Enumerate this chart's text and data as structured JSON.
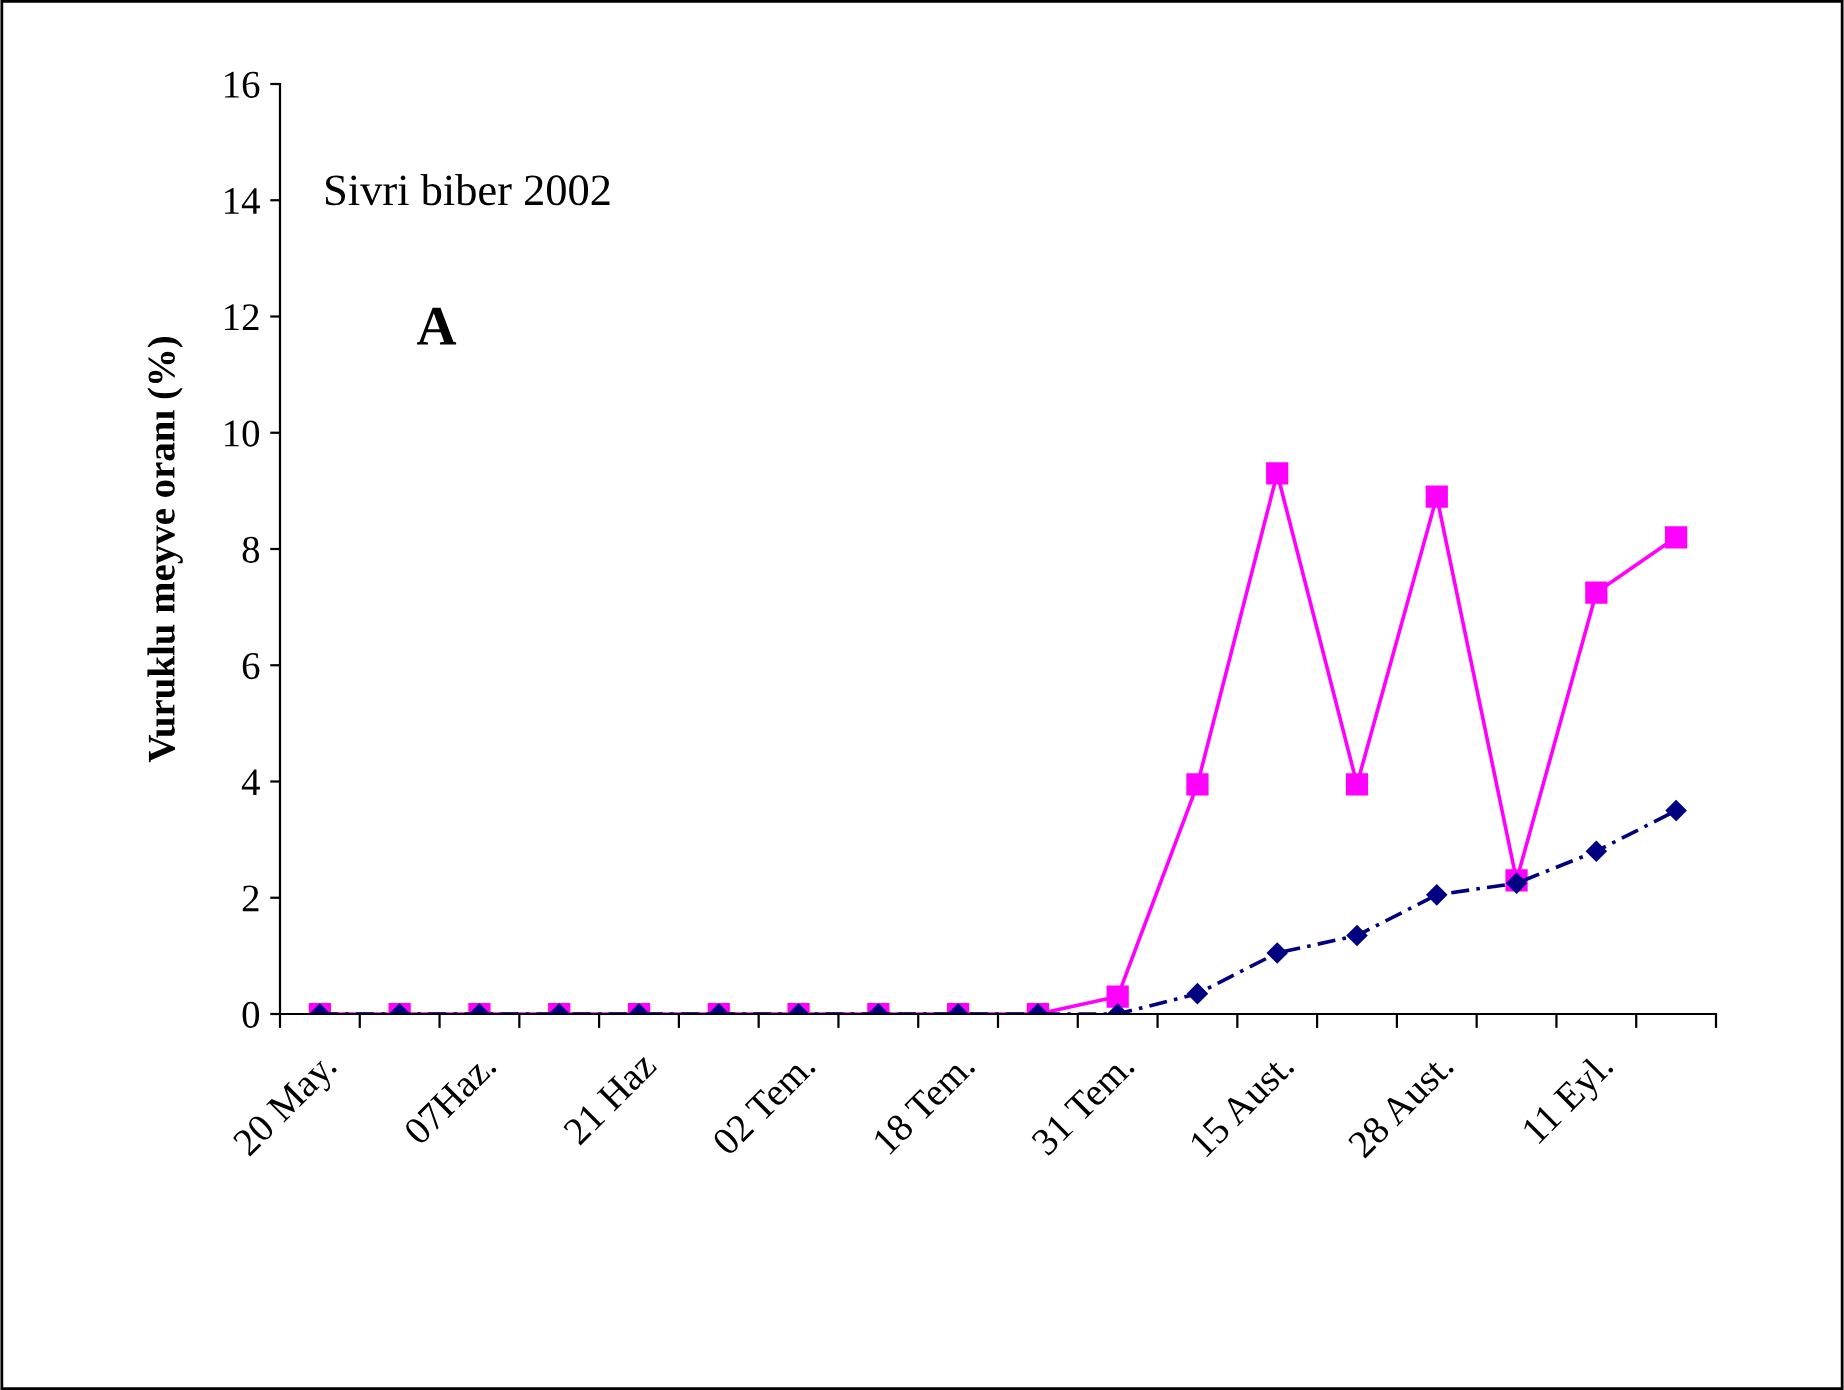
{
  "chart_data": {
    "type": "line",
    "ylabel": "Vuruklu meyve oranı (%)",
    "annotations": [
      "Sivri biber 2002",
      "A"
    ],
    "categories": [
      "20 May.",
      null,
      "07Haz.",
      null,
      "21 Haz",
      null,
      "02 Tem.",
      null,
      "18 Tem.",
      null,
      "31 Tem.",
      null,
      "15 Aust.",
      null,
      "28 Aust.",
      null,
      "11 Eyl.",
      null
    ],
    "series": [
      {
        "color": "#ff00ff",
        "marker": "square",
        "line_style": "solid",
        "values": [
          0,
          0,
          0,
          0,
          0,
          0,
          0,
          0,
          0,
          0,
          0.3,
          3.95,
          9.3,
          3.95,
          8.9,
          2.3,
          7.25,
          8.2
        ]
      },
      {
        "color": "#000080",
        "marker": "diamond",
        "line_style": "dashed",
        "values": [
          0,
          0,
          0,
          0,
          0,
          0,
          0,
          0,
          0,
          0,
          0,
          0.35,
          1.05,
          1.35,
          2.05,
          2.25,
          2.8,
          3.5
        ]
      }
    ],
    "ylim": [
      0,
      16
    ],
    "yticks": [
      0,
      2,
      4,
      6,
      8,
      10,
      12,
      14,
      16
    ],
    "grid": false,
    "legend": false
  }
}
